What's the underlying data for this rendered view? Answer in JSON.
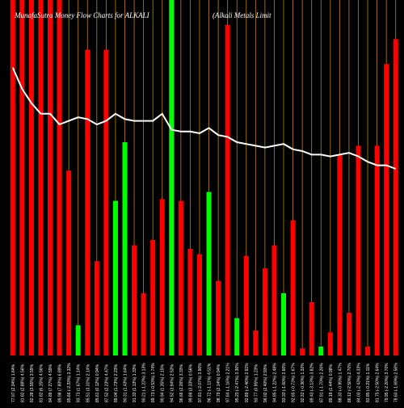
{
  "title": "MunafaSutra Money Flow Charts for ALKALI",
  "subtitle": "(Alkali Metals Limit",
  "colors": {
    "background": "#000000",
    "up": "#00ff00",
    "down": "#ff0000",
    "gridline": "#b8860b",
    "line": "#ffffff",
    "text": "#ffffff"
  },
  "chart_data": {
    "type": "bar",
    "ylim": [
      0,
      100
    ],
    "grid": "vertical",
    "categories": [
      "77.07 (2.34%) 1.64%",
      "81.82 (2.88%) 4.56%",
      "82.28 (3.55%) 3.59%",
      "81.82 (6.15%) 4.56%",
      "84.89 (7.27%) 4.59%",
      "89.98 (7.80%) 6.89%",
      "85.66 (-2.33%) 3.32%",
      "83.73 (1.67%) 1.14%",
      "85.51 (3.31%) 2.14%",
      "85.61 (0.12%) 0.94%",
      "87.52 (2.23%) 4.47%",
      "89.04 (1.73%) 2.23%",
      "90.31 (1.43%) 1.64%",
      "91.33 (1.13%) 1.33%",
      "90.21 (-1.23%) 3.13%",
      "89.73 (-0.53%) 1.74%",
      "90.94 (1.35%) 2.15%",
      "94.52 (3.94%) 2.53%",
      "96.66 (2.26%) 3.33%",
      "99.88 (3.33%) 0.56%",
      "97.81 (-2.07%) 3.96%",
      "96.72 (-1.11%) 4.51%",
      "98.79 (2.14%) 0.94%",
      "97.64 (-1.16%) 2.21%",
      "95.23 (-2.47%) 3.36%",
      "92.89 (-2.46%) 2.91%",
      "93.77 (0.95%) 1.23%",
      "96.02 (2.40%) 2.93%",
      "94.85 (-1.22%) 2.48%",
      "93.33 (-1.60%) 2.66%",
      "92.65 (-0.73%) 1.67%",
      "92.32 (-0.36%) 1.32%",
      "89.43 (-3.13%) 3.82%",
      "87.91 (-1.70%) 2.26%",
      "89.18 (1.44%) 0.98%",
      "88.33 (-0.95%) 1.47%",
      "86.12 (-2.50%) 2.70%",
      "84.03 (-2.43%) 4.33%",
      "83.85 (-0.21%) 1.11%",
      "81.75 (-2.50%) 2.64%",
      "79.95 (-2.20%) 3.70%",
      "78.60 (-1.69%) 2.56%"
    ],
    "series": [
      {
        "values": [
          100,
          100,
          100,
          100,
          100,
          100,
          52,
          8.5,
          86,
          26.5,
          86,
          43.5,
          60,
          31,
          17.5,
          32.5,
          44,
          100,
          43.5,
          30,
          28.5,
          46,
          21,
          93,
          10.5,
          28,
          7,
          24.5,
          31,
          17.5,
          38,
          2,
          15,
          2.5,
          6.5,
          56.5,
          12,
          59,
          2.5,
          59,
          82,
          89
        ],
        "colors": [
          "red",
          "red",
          "red",
          "red",
          "red",
          "red",
          "red",
          "green",
          "red",
          "red",
          "red",
          "green",
          "green",
          "red",
          "red",
          "red",
          "red",
          "green",
          "red",
          "red",
          "red",
          "green",
          "red",
          "red",
          "green",
          "red",
          "red",
          "red",
          "red",
          "green",
          "red",
          "red",
          "red",
          "green",
          "red",
          "red",
          "red",
          "red",
          "red",
          "red",
          "red",
          "red"
        ]
      },
      {
        "values": [
          81,
          75,
          71,
          68,
          68,
          65,
          66,
          67,
          66.5,
          65,
          66,
          68,
          66.5,
          66,
          66,
          66,
          68,
          63.5,
          63,
          63,
          62.5,
          64,
          62,
          61.5,
          60,
          59.5,
          59,
          58.5,
          59,
          59.5,
          58,
          57.5,
          56.5,
          56.5,
          56,
          56.5,
          57,
          56,
          54.5,
          53.5,
          53.5,
          52.5
        ]
      }
    ]
  },
  "tick_labels": [
    "77.07 (2.34%) 1.64%",
    "81.82 (2.88%) 4.56%",
    "82.28 (3.55%) 3.59%",
    "81.82 (6.15%) 4.56%",
    "84.89 (7.27%) 4.59%",
    "89.98 (7.80%) 6.89%",
    "85.66 (-2.33%) 3.32%",
    "83.73 (1.67%) 1.14%",
    "85.51 (3.31%) 2.14%",
    "85.61 (0.12%) 0.94%",
    "87.52 (2.23%) 4.47%",
    "89.04 (1.73%) 2.23%",
    "90.31 (1.43%) 1.64%",
    "91.33 (1.13%) 1.33%",
    "90.21 (-1.23%) 3.13%",
    "89.73 (-0.53%) 1.74%",
    "90.94 (1.35%) 2.15%",
    "94.52 (3.94%) 2.53%",
    "96.66 (2.26%) 3.33%",
    "99.88 (3.33%) 0.56%",
    "97.81 (-2.07%) 3.96%",
    "96.72 (-1.11%) 4.51%",
    "98.79 (2.14%) 0.94%",
    "97.64 (-1.16%) 2.21%",
    "95.23 (-2.47%) 3.36%",
    "92.89 (-2.46%) 2.91%",
    "93.77 (0.95%) 1.23%",
    "96.02 (2.40%) 2.93%",
    "94.85 (-1.22%) 2.48%",
    "93.33 (-1.60%) 2.66%",
    "92.65 (-0.73%) 1.67%",
    "92.32 (-0.36%) 1.32%",
    "89.43 (-3.13%) 3.82%",
    "87.91 (-1.70%) 2.26%",
    "89.18 (1.44%) 0.98%",
    "88.33 (-0.95%) 1.47%",
    "86.12 (-2.50%) 2.70%",
    "84.03 (-2.43%) 4.33%",
    "83.85 (-0.21%) 1.11%",
    "81.75 (-2.50%) 2.64%",
    "79.95 (-2.20%) 3.70%",
    "78.60 (-1.69%) 2.56%"
  ]
}
